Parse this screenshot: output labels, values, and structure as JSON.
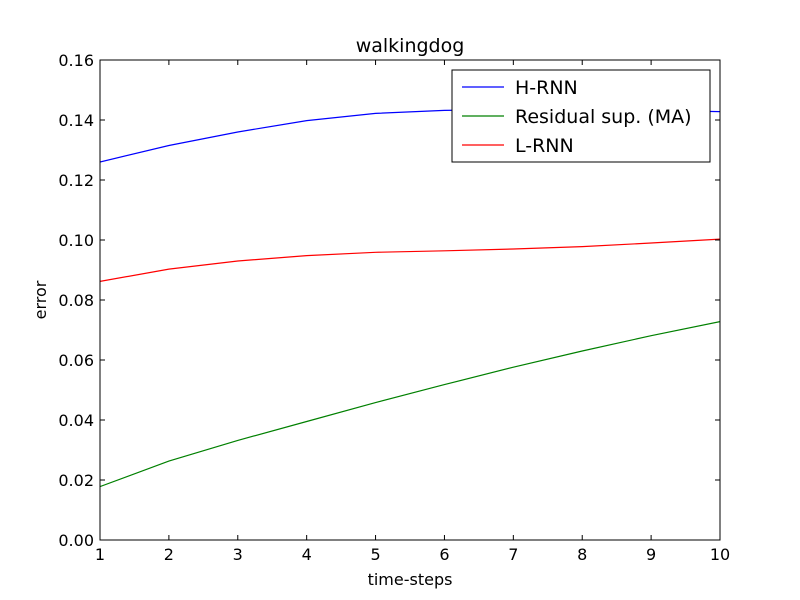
{
  "chart_data": {
    "type": "line",
    "title": "walkingdog",
    "xlabel": "time-steps",
    "ylabel": "error",
    "xlim": [
      1,
      10
    ],
    "ylim": [
      0.0,
      0.16
    ],
    "x_ticks": [
      1,
      2,
      3,
      4,
      5,
      6,
      7,
      8,
      9,
      10
    ],
    "y_ticks": [
      0.0,
      0.02,
      0.04,
      0.06,
      0.08,
      0.1,
      0.12,
      0.14,
      0.16
    ],
    "y_tick_labels": [
      "0.00",
      "0.02",
      "0.04",
      "0.06",
      "0.08",
      "0.10",
      "0.12",
      "0.14",
      "0.16"
    ],
    "grid": false,
    "legend_position": "top-right",
    "x": [
      1,
      2,
      3,
      4,
      5,
      6,
      7,
      8,
      9,
      10
    ],
    "series": [
      {
        "name": "H-RNN",
        "color": "#0000ff",
        "values": [
          0.126,
          0.1315,
          0.136,
          0.1398,
          0.1422,
          0.1432,
          0.1435,
          0.1436,
          0.1432,
          0.1428
        ]
      },
      {
        "name": "Residual sup. (MA)",
        "color": "#008000",
        "values": [
          0.0178,
          0.0263,
          0.0332,
          0.0395,
          0.0458,
          0.0518,
          0.0576,
          0.063,
          0.0681,
          0.0728
        ]
      },
      {
        "name": "L-RNN",
        "color": "#ff0000",
        "values": [
          0.0862,
          0.0903,
          0.093,
          0.0948,
          0.0959,
          0.0964,
          0.097,
          0.0978,
          0.099,
          0.1003
        ]
      }
    ]
  }
}
